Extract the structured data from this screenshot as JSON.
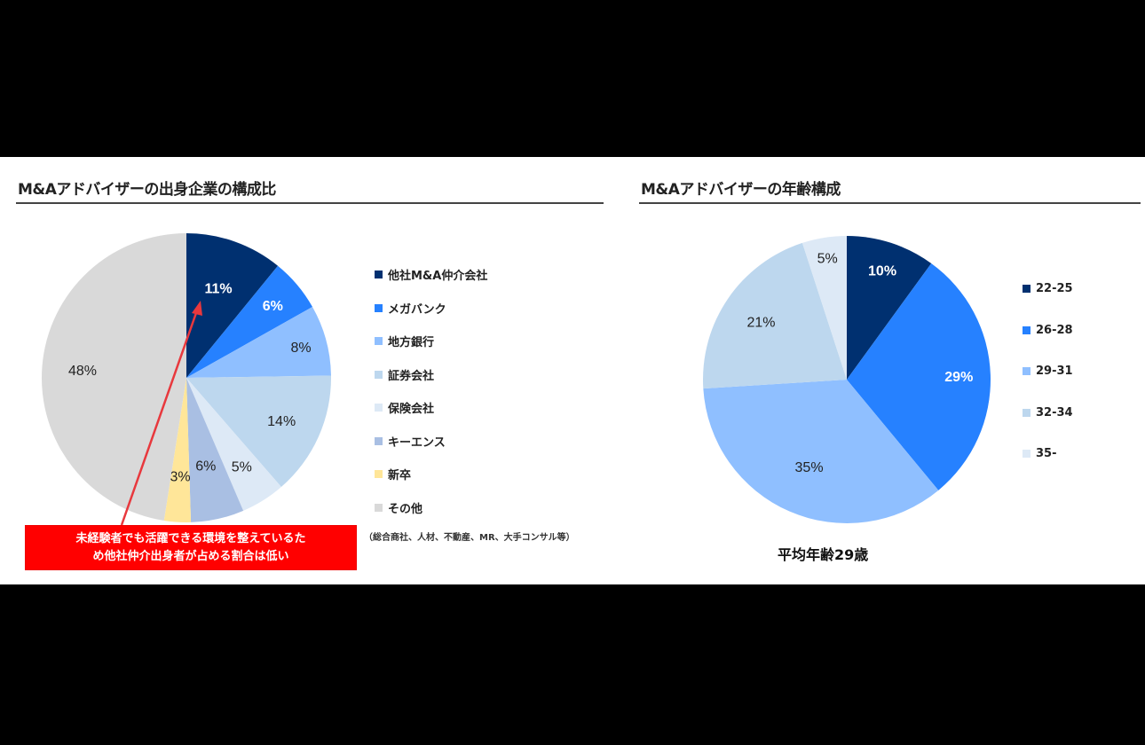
{
  "left": {
    "title": "M&Aアドバイザーの出身企業の構成比",
    "note": "（総合商社、人材、不動産、MR、大手コンサル等）",
    "callout_line1": "未経験者でも活躍できる環境を整えているた",
    "callout_line2": "め他社仲介出身者が占める割合は低い"
  },
  "right": {
    "title": "M&Aアドバイザーの年齢構成",
    "average": "平均年齢29歳"
  },
  "colors": {
    "annotation_red": "#ff0000"
  },
  "chart_data": [
    {
      "type": "pie",
      "title": "M&Aアドバイザーの出身企業の構成比",
      "start_angle": "12 o'clock, clockwise",
      "legend_position": "right",
      "categories": [
        "他社M&A仲介会社",
        "メガバンク",
        "地方銀行",
        "証券会社",
        "保険会社",
        "キーエンス",
        "新卒",
        "その他"
      ],
      "values": [
        11,
        6,
        8,
        14,
        5,
        6,
        3,
        48
      ],
      "labels": [
        "11%",
        "6%",
        "8%",
        "14%",
        "5%",
        "6%",
        "3%",
        "48%"
      ],
      "colors": [
        "#003070",
        "#2681ff",
        "#8fbfff",
        "#bdd7ee",
        "#dde9f6",
        "#a9bfe3",
        "#ffe699",
        "#d9d9d9"
      ],
      "label_colors": [
        "#ffffff",
        "#ffffff",
        "#222222",
        "#222222",
        "#222222",
        "#222222",
        "#222222",
        "#222222"
      ],
      "annotation": "未経験者でも活躍できる環境を整えているため他社仲介出身者が占める割合は低い"
    },
    {
      "type": "pie",
      "title": "M&Aアドバイザーの年齢構成",
      "start_angle": "12 o'clock, clockwise",
      "legend_position": "right",
      "categories": [
        "22-25",
        "26-28",
        "29-31",
        "32-34",
        "35-"
      ],
      "values": [
        10,
        29,
        35,
        21,
        5
      ],
      "labels": [
        "10%",
        "29%",
        "35%",
        "21%",
        "5%"
      ],
      "colors": [
        "#003070",
        "#2681ff",
        "#8fbfff",
        "#bdd7ee",
        "#dde9f6"
      ],
      "label_colors": [
        "#ffffff",
        "#ffffff",
        "#222222",
        "#222222",
        "#222222"
      ],
      "subtitle": "平均年齢29歳"
    }
  ]
}
